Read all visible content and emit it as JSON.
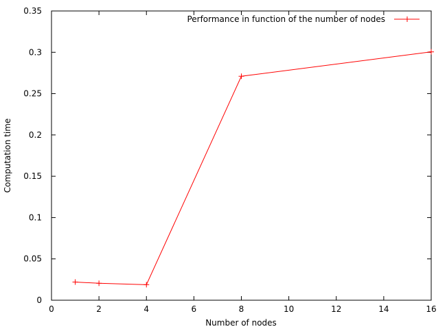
{
  "chart_data": {
    "type": "line",
    "title": "",
    "xlabel": "Number of nodes",
    "ylabel": "Computation time",
    "xlim": [
      0,
      16
    ],
    "ylim": [
      0,
      0.35
    ],
    "xticks": [
      0,
      2,
      4,
      6,
      8,
      10,
      12,
      14,
      16
    ],
    "yticks": [
      0,
      0.05,
      0.1,
      0.15,
      0.2,
      0.25,
      0.3,
      0.35
    ],
    "xtick_labels": [
      "0",
      "2",
      "4",
      "6",
      "8",
      "10",
      "12",
      "14",
      "16"
    ],
    "ytick_labels": [
      "0",
      "0.05",
      "0.1",
      "0.15",
      "0.2",
      "0.25",
      "0.3",
      "0.35"
    ],
    "grid": false,
    "legend_position": "top-right",
    "series": [
      {
        "name": "Performance in function of the number of nodes",
        "color": "#ff0000",
        "marker": "plus",
        "x": [
          1,
          2,
          4,
          8,
          16
        ],
        "y": [
          0.022,
          0.0205,
          0.0188,
          0.271,
          0.3005
        ]
      }
    ]
  }
}
